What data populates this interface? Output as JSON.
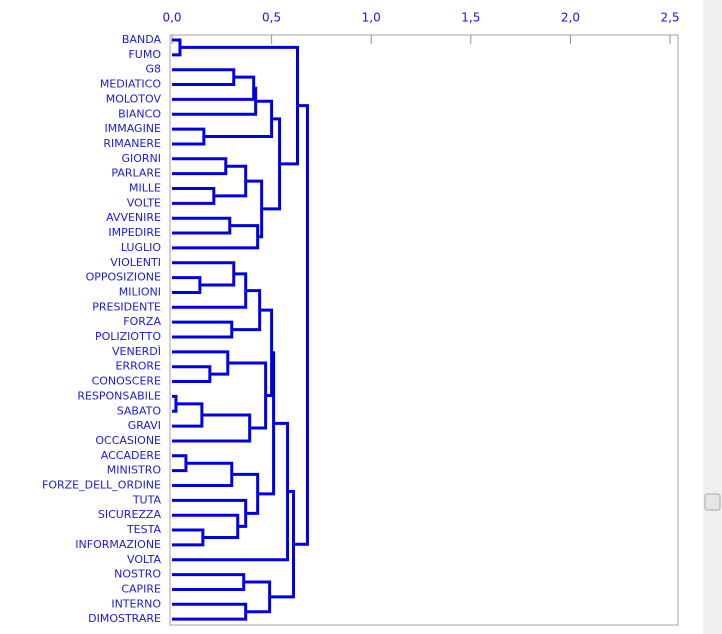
{
  "chart_data": {
    "type": "dendrogram",
    "labels": [
      "BANDA",
      "FUMO",
      "G8",
      "MEDIATICO",
      "MOLOTOV",
      "BIANCO",
      "IMMAGINE",
      "RIMANERE",
      "GIORNI",
      "PARLARE",
      "MILLE",
      "VOLTE",
      "AVVENIRE",
      "IMPEDIRE",
      "LUGLIO",
      "VIOLENTI",
      "OPPOSIZIONE",
      "MILIONI",
      "PRESIDENTE",
      "FORZA",
      "POLIZIOTTO",
      "VENERDÌ",
      "ERRORE",
      "CONOSCERE",
      "RESPONSABILE",
      "SABATO",
      "GRAVI",
      "OCCASIONE",
      "ACCADERE",
      "MINISTRO",
      "FORZE_DELL_ORDINE",
      "TUTA",
      "SICUREZZA",
      "TESTA",
      "INFORMAZIONE",
      "VOLTA",
      "NOSTRO",
      "CAPIRE",
      "INTERNO",
      "DIMOSTRARE"
    ],
    "merges": [
      [
        0,
        1,
        0.04
      ],
      [
        2,
        3,
        0.31
      ],
      [
        41,
        4,
        0.41
      ],
      [
        42,
        5,
        0.42
      ],
      [
        6,
        7,
        0.16
      ],
      [
        43,
        44,
        0.5
      ],
      [
        8,
        9,
        0.27
      ],
      [
        10,
        11,
        0.21
      ],
      [
        46,
        47,
        0.37
      ],
      [
        12,
        13,
        0.29
      ],
      [
        49,
        14,
        0.43
      ],
      [
        48,
        50,
        0.45
      ],
      [
        45,
        51,
        0.54
      ],
      [
        40,
        52,
        0.63
      ],
      [
        16,
        17,
        0.14
      ],
      [
        15,
        54,
        0.31
      ],
      [
        55,
        18,
        0.37
      ],
      [
        19,
        20,
        0.3
      ],
      [
        56,
        57,
        0.44
      ],
      [
        22,
        23,
        0.19
      ],
      [
        21,
        59,
        0.28
      ],
      [
        24,
        25,
        0.02
      ],
      [
        61,
        26,
        0.15
      ],
      [
        62,
        27,
        0.39
      ],
      [
        60,
        63,
        0.47
      ],
      [
        58,
        64,
        0.5
      ],
      [
        28,
        29,
        0.07
      ],
      [
        66,
        30,
        0.3
      ],
      [
        33,
        34,
        0.155
      ],
      [
        32,
        68,
        0.33
      ],
      [
        31,
        69,
        0.37
      ],
      [
        67,
        70,
        0.43
      ],
      [
        65,
        71,
        0.51
      ],
      [
        72,
        35,
        0.58
      ],
      [
        36,
        37,
        0.36
      ],
      [
        38,
        39,
        0.37
      ],
      [
        74,
        75,
        0.49
      ],
      [
        73,
        76,
        0.61
      ],
      [
        53,
        77,
        0.68
      ]
    ],
    "color": "#0000e0",
    "xlim": [
      0,
      2.54
    ],
    "xticks": [
      {
        "value": 0,
        "label": "0,0"
      },
      {
        "value": 0.5,
        "label": "0,5"
      },
      {
        "value": 1,
        "label": "1,0"
      },
      {
        "value": 1.5,
        "label": "1,5"
      },
      {
        "value": 2,
        "label": "2,0"
      },
      {
        "value": 2.5,
        "label": "2,5"
      }
    ]
  }
}
